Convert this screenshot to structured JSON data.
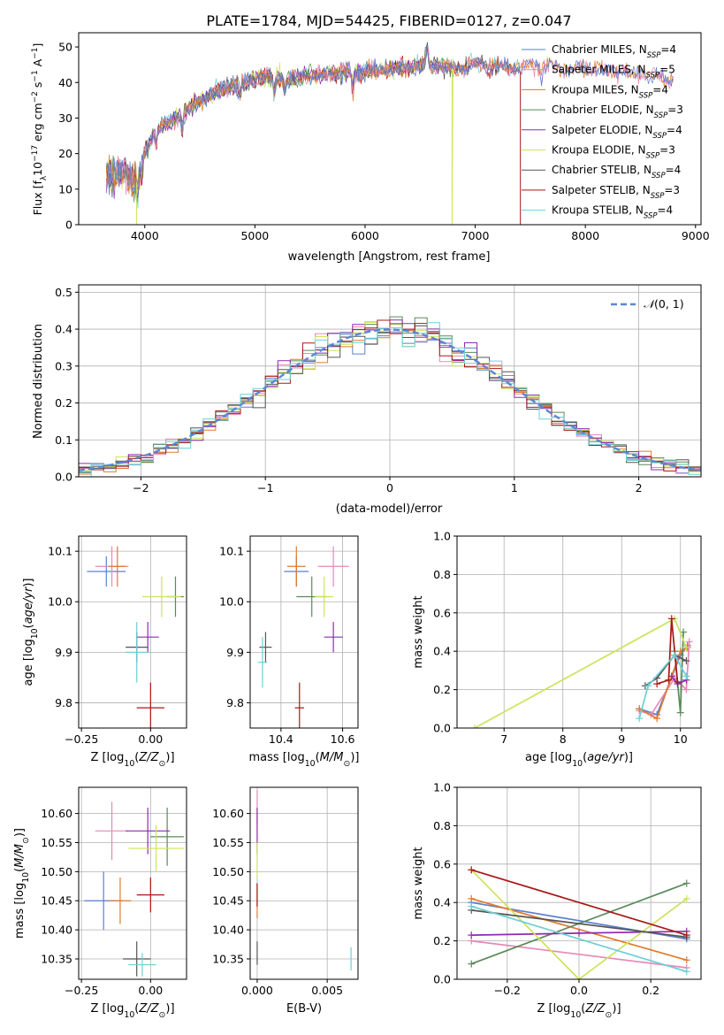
{
  "figure_title": "PLATE=1784, MJD=54425, FIBERID=0127, z=0.047",
  "colors": {
    "Chabrier MILES": "#5b7fd0",
    "Salpeter MILES": "#e987b6",
    "Kroupa MILES": "#e07b2b",
    "Chabrier ELODIE": "#5a8a5a",
    "Salpeter ELODIE": "#8e2ab0",
    "Kroupa ELODIE": "#cde35a",
    "Chabrier STELIB": "#555555",
    "Salpeter STELIB": "#a81818",
    "Kroupa STELIB": "#6ccfd6"
  },
  "chart_data": [
    {
      "type": "line",
      "panel": "spectrum",
      "xlabel": "wavelength [Angstrom, rest frame]",
      "ylabel": "Flux [f_λ 10^-17 erg cm^-2 s^-1 A^-1]",
      "xlim": [
        3400,
        9050
      ],
      "ylim": [
        0,
        54
      ],
      "xticks": [
        4000,
        5000,
        6000,
        7000,
        8000,
        9000
      ],
      "yticks": [
        0,
        10,
        20,
        30,
        40,
        50
      ],
      "legend_position": "right",
      "legend": [
        {
          "name": "Chabrier MILES",
          "nssp": "4"
        },
        {
          "name": "Salpeter MILES",
          "nssp": "5"
        },
        {
          "name": "Kroupa MILES",
          "nssp": "4"
        },
        {
          "name": "Chabrier ELODIE",
          "nssp": "3"
        },
        {
          "name": "Salpeter ELODIE",
          "nssp": "4"
        },
        {
          "name": "Kroupa ELODIE",
          "nssp": "3"
        },
        {
          "name": "Chabrier STELIB",
          "nssp": "4"
        },
        {
          "name": "Salpeter STELIB",
          "nssp": "3"
        },
        {
          "name": "Kroupa STELIB",
          "nssp": "4"
        }
      ],
      "continuum": [
        [
          3650,
          14
        ],
        [
          3800,
          15
        ],
        [
          3900,
          12
        ],
        [
          4000,
          20
        ],
        [
          4100,
          27
        ],
        [
          4300,
          30
        ],
        [
          4500,
          35
        ],
        [
          4700,
          38
        ],
        [
          4900,
          40
        ],
        [
          5100,
          42
        ],
        [
          5300,
          41
        ],
        [
          5500,
          42
        ],
        [
          5800,
          43
        ],
        [
          6000,
          43
        ],
        [
          6300,
          44
        ],
        [
          6600,
          45
        ],
        [
          6800,
          44
        ],
        [
          7000,
          45
        ],
        [
          7300,
          44
        ],
        [
          7600,
          45
        ],
        [
          7800,
          44
        ],
        [
          8000,
          44
        ],
        [
          8300,
          43
        ],
        [
          8600,
          42
        ],
        [
          8800,
          41
        ]
      ],
      "series_ranges": {
        "Chabrier MILES": [
          3650,
          8800
        ],
        "Salpeter MILES": [
          3650,
          8800
        ],
        "Kroupa MILES": [
          3650,
          8800
        ],
        "Chabrier ELODIE": [
          3650,
          6800
        ],
        "Salpeter ELODIE": [
          3650,
          6800
        ],
        "Kroupa ELODIE": [
          3650,
          6800
        ],
        "Chabrier STELIB": [
          3650,
          7410
        ],
        "Salpeter STELIB": [
          3650,
          7410
        ],
        "Kroupa STELIB": [
          3650,
          7410
        ]
      }
    },
    {
      "type": "bar",
      "panel": "residuals",
      "xlabel": "(data-model)/error",
      "ylabel": "Normed distribution",
      "xlim": [
        -2.5,
        2.5
      ],
      "ylim": [
        0,
        0.52
      ],
      "xticks": [
        -2,
        -1,
        0,
        1,
        2
      ],
      "yticks": [
        0.0,
        0.1,
        0.2,
        0.3,
        0.4,
        0.5
      ],
      "grid": true,
      "legend_position": "top-right",
      "normal_label": "N(0,1)",
      "bin_start": -2.5,
      "bin_width": 0.1
    },
    {
      "type": "scatter",
      "panel": "age-vs-Z",
      "xlabel": "Z [log10(Z/Z⊙)]",
      "ylabel": "age [log10(age/yr)]",
      "xlim": [
        -0.26,
        0.13
      ],
      "ylim": [
        9.75,
        10.13
      ],
      "xticks": [
        -0.25,
        0.0
      ],
      "yticks": [
        9.8,
        9.9,
        10.0,
        10.1
      ],
      "grid": true,
      "points": [
        {
          "series": "Chabrier MILES",
          "x": -0.16,
          "xerr": 0.07,
          "y": 10.06,
          "yerr": 0.03
        },
        {
          "series": "Salpeter MILES",
          "x": -0.14,
          "xerr": 0.06,
          "y": 10.07,
          "yerr": 0.04
        },
        {
          "series": "Kroupa MILES",
          "x": -0.12,
          "xerr": 0.03,
          "y": 10.07,
          "yerr": 0.04
        },
        {
          "series": "Chabrier ELODIE",
          "x": 0.09,
          "xerr": 0.03,
          "y": 10.01,
          "yerr": 0.04
        },
        {
          "series": "Salpeter ELODIE",
          "x": -0.01,
          "xerr": 0.04,
          "y": 9.93,
          "yerr": 0.03
        },
        {
          "series": "Kroupa ELODIE",
          "x": 0.04,
          "xerr": 0.07,
          "y": 10.01,
          "yerr": 0.04
        },
        {
          "series": "Chabrier STELIB",
          "x": -0.05,
          "xerr": 0.04,
          "y": 9.91,
          "yerr": 0.03
        },
        {
          "series": "Salpeter STELIB",
          "x": 0.0,
          "xerr": 0.05,
          "y": 9.79,
          "yerr": 0.05
        },
        {
          "series": "Kroupa STELIB",
          "x": -0.05,
          "xerr": 0.04,
          "y": 9.9,
          "yerr": 0.06
        }
      ]
    },
    {
      "type": "scatter",
      "panel": "age-vs-mass",
      "xlabel": "mass [log10(M/M⊙)]",
      "xlim": [
        10.3,
        10.65
      ],
      "ylim": [
        9.75,
        10.13
      ],
      "xticks": [
        10.4,
        10.6
      ],
      "yticks": [
        9.8,
        9.9,
        10.0,
        10.1
      ],
      "grid": true,
      "points": [
        {
          "series": "Chabrier MILES",
          "x": 10.45,
          "xerr": 0.04,
          "y": 10.06,
          "yerr": 0.03
        },
        {
          "series": "Salpeter MILES",
          "x": 10.57,
          "xerr": 0.05,
          "y": 10.07,
          "yerr": 0.04
        },
        {
          "series": "Kroupa MILES",
          "x": 10.45,
          "xerr": 0.03,
          "y": 10.07,
          "yerr": 0.04
        },
        {
          "series": "Chabrier ELODIE",
          "x": 10.5,
          "xerr": 0.05,
          "y": 10.01,
          "yerr": 0.04
        },
        {
          "series": "Salpeter ELODIE",
          "x": 10.57,
          "xerr": 0.03,
          "y": 9.93,
          "yerr": 0.03
        },
        {
          "series": "Kroupa ELODIE",
          "x": 10.54,
          "xerr": 0.03,
          "y": 10.01,
          "yerr": 0.04
        },
        {
          "series": "Chabrier STELIB",
          "x": 10.35,
          "xerr": 0.02,
          "y": 9.91,
          "yerr": 0.03
        },
        {
          "series": "Salpeter STELIB",
          "x": 10.46,
          "xerr": 0.015,
          "y": 9.79,
          "yerr": 0.05
        },
        {
          "series": "Kroupa STELIB",
          "x": 10.34,
          "xerr": 0.015,
          "y": 9.88,
          "yerr": 0.05
        }
      ]
    },
    {
      "type": "line",
      "panel": "mass-weight-vs-age",
      "xlabel": "age [log10(age/yr)]",
      "ylabel": "mass weight",
      "xlim": [
        6.2,
        10.35
      ],
      "ylim": [
        0,
        1
      ],
      "xticks": [
        7,
        8,
        9,
        10
      ],
      "yticks": [
        0.0,
        0.2,
        0.4,
        0.6,
        0.8,
        1.0
      ],
      "grid": true,
      "series": [
        {
          "series": "Chabrier MILES",
          "points": [
            [
              9.3,
              0.1
            ],
            [
              9.6,
              0.07
            ],
            [
              10.0,
              0.38
            ],
            [
              10.12,
              0.43
            ]
          ]
        },
        {
          "series": "Salpeter MILES",
          "points": [
            [
              9.3,
              0.09
            ],
            [
              9.5,
              0.07
            ],
            [
              9.9,
              0.26
            ],
            [
              10.1,
              0.2
            ],
            [
              10.15,
              0.45
            ]
          ]
        },
        {
          "series": "Kroupa MILES",
          "points": [
            [
              9.3,
              0.1
            ],
            [
              9.6,
              0.05
            ],
            [
              10.0,
              0.4
            ],
            [
              10.12,
              0.42
            ]
          ]
        },
        {
          "series": "Chabrier ELODIE",
          "points": [
            [
              9.9,
              0.4
            ],
            [
              10.0,
              0.08
            ],
            [
              10.05,
              0.5
            ]
          ]
        },
        {
          "series": "Salpeter ELODIE",
          "points": [
            [
              9.85,
              0.27
            ],
            [
              9.95,
              0.23
            ],
            [
              10.1,
              0.25
            ]
          ]
        },
        {
          "series": "Kroupa ELODIE",
          "points": [
            [
              6.5,
              0.0
            ],
            [
              9.9,
              0.57
            ],
            [
              10.1,
              0.42
            ]
          ]
        },
        {
          "series": "Chabrier STELIB",
          "points": [
            [
              9.4,
              0.22
            ],
            [
              9.6,
              0.26
            ],
            [
              9.9,
              0.38
            ],
            [
              10.1,
              0.35
            ]
          ]
        },
        {
          "series": "Salpeter STELIB",
          "points": [
            [
              9.6,
              0.23
            ],
            [
              9.8,
              0.25
            ],
            [
              9.85,
              0.57
            ],
            [
              9.95,
              0.24
            ]
          ]
        },
        {
          "series": "Kroupa STELIB",
          "points": [
            [
              9.3,
              0.05
            ],
            [
              9.45,
              0.22
            ],
            [
              9.9,
              0.38
            ],
            [
              10.1,
              0.27
            ]
          ]
        }
      ]
    },
    {
      "type": "scatter",
      "panel": "mass-vs-Z",
      "xlabel": "Z [log10(Z/Z⊙)]",
      "ylabel": "mass [log10(M/M⊙)]",
      "xlim": [
        -0.26,
        0.13
      ],
      "ylim": [
        10.315,
        10.645
      ],
      "xticks": [
        -0.25,
        0.0
      ],
      "yticks": [
        10.35,
        10.4,
        10.45,
        10.5,
        10.55,
        10.6
      ],
      "grid": true,
      "points": [
        {
          "series": "Chabrier MILES",
          "x": -0.17,
          "xerr": 0.07,
          "y": 10.45,
          "yerr": 0.05
        },
        {
          "series": "Salpeter MILES",
          "x": -0.14,
          "xerr": 0.06,
          "y": 10.57,
          "yerr": 0.05
        },
        {
          "series": "Kroupa MILES",
          "x": -0.11,
          "xerr": 0.04,
          "y": 10.45,
          "yerr": 0.04
        },
        {
          "series": "Chabrier ELODIE",
          "x": 0.06,
          "xerr": 0.06,
          "y": 10.56,
          "yerr": 0.05
        },
        {
          "series": "Salpeter ELODIE",
          "x": -0.01,
          "xerr": 0.08,
          "y": 10.57,
          "yerr": 0.04
        },
        {
          "series": "Kroupa ELODIE",
          "x": 0.02,
          "xerr": 0.1,
          "y": 10.54,
          "yerr": 0.04
        },
        {
          "series": "Chabrier STELIB",
          "x": -0.05,
          "xerr": 0.05,
          "y": 10.35,
          "yerr": 0.03
        },
        {
          "series": "Salpeter STELIB",
          "x": 0.0,
          "xerr": 0.05,
          "y": 10.46,
          "yerr": 0.03
        },
        {
          "series": "Kroupa STELIB",
          "x": -0.03,
          "xerr": 0.05,
          "y": 10.34,
          "yerr": 0.02
        }
      ]
    },
    {
      "type": "scatter",
      "panel": "mass-vs-EBV",
      "xlabel": "E(B-V)",
      "xlim": [
        -0.0005,
        0.0072
      ],
      "ylim": [
        10.315,
        10.645
      ],
      "xticks": [
        0.0,
        0.005
      ],
      "xticklabels": [
        "0.000",
        "0.005"
      ],
      "yticks": [
        10.35,
        10.4,
        10.45,
        10.5,
        10.55,
        10.6
      ],
      "grid": true,
      "points": [
        {
          "series": "Salpeter MILES",
          "x": 0.0,
          "y": 10.61,
          "yerr": 0.03
        },
        {
          "series": "Salpeter ELODIE",
          "x": 0.0,
          "y": 10.57,
          "yerr": 0.04
        },
        {
          "series": "Kroupa ELODIE",
          "x": 0.0,
          "y": 10.52,
          "yerr": 0.03
        },
        {
          "series": "Kroupa MILES",
          "x": 0.0,
          "y": 10.45,
          "yerr": 0.03
        },
        {
          "series": "Salpeter STELIB",
          "x": 0.0,
          "y": 10.46,
          "yerr": 0.02
        },
        {
          "series": "Chabrier STELIB",
          "x": 0.0,
          "y": 10.36,
          "yerr": 0.02
        },
        {
          "series": "Kroupa STELIB",
          "x": 0.0067,
          "y": 10.35,
          "yerr": 0.02
        }
      ]
    },
    {
      "type": "line",
      "panel": "mass-weight-vs-Z",
      "xlabel": "Z [log10(Z/Z⊙)]",
      "ylabel": "mass weight",
      "xlim": [
        -0.34,
        0.34
      ],
      "ylim": [
        0,
        1
      ],
      "xticks": [
        -0.2,
        0.0,
        0.2
      ],
      "yticks": [
        0.0,
        0.2,
        0.4,
        0.6,
        0.8,
        1.0
      ],
      "grid": true,
      "series": [
        {
          "series": "Chabrier MILES",
          "points": [
            [
              -0.3,
              0.4
            ],
            [
              0.3,
              0.21
            ]
          ]
        },
        {
          "series": "Salpeter MILES",
          "points": [
            [
              -0.3,
              0.2
            ],
            [
              0.3,
              0.06
            ]
          ]
        },
        {
          "series": "Kroupa MILES",
          "points": [
            [
              -0.3,
              0.42
            ],
            [
              0.3,
              0.1
            ]
          ]
        },
        {
          "series": "Chabrier ELODIE",
          "points": [
            [
              -0.3,
              0.08
            ],
            [
              0.3,
              0.5
            ]
          ]
        },
        {
          "series": "Salpeter ELODIE",
          "points": [
            [
              -0.3,
              0.23
            ],
            [
              0.0,
              0.24
            ],
            [
              0.3,
              0.25
            ]
          ]
        },
        {
          "series": "Kroupa ELODIE",
          "points": [
            [
              -0.3,
              0.57
            ],
            [
              0.0,
              0.0
            ],
            [
              0.3,
              0.42
            ]
          ]
        },
        {
          "series": "Chabrier STELIB",
          "points": [
            [
              -0.3,
              0.36
            ],
            [
              0.3,
              0.22
            ]
          ]
        },
        {
          "series": "Salpeter STELIB",
          "points": [
            [
              -0.3,
              0.57
            ],
            [
              0.3,
              0.23
            ]
          ]
        },
        {
          "series": "Kroupa STELIB",
          "points": [
            [
              -0.3,
              0.38
            ],
            [
              0.3,
              0.04
            ]
          ]
        }
      ]
    }
  ]
}
